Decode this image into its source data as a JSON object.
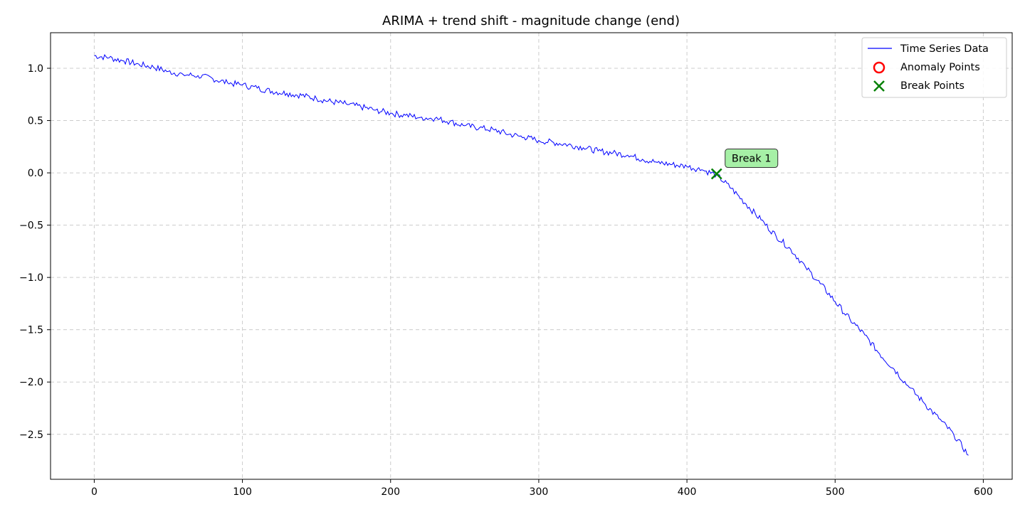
{
  "chart_data": {
    "type": "line",
    "title": "ARIMA + trend shift - magnitude change (end)",
    "xlabel": "",
    "ylabel": "",
    "xlim": [
      -29.5,
      619.5
    ],
    "ylim": [
      -2.93,
      1.34
    ],
    "xticks": [
      0,
      100,
      200,
      300,
      400,
      500,
      600
    ],
    "yticks": [
      -2.5,
      -2.0,
      -1.5,
      -1.0,
      -0.5,
      0.0,
      0.5,
      1.0
    ],
    "ytick_labels": [
      "−2.5",
      "−2.0",
      "−1.5",
      "−1.0",
      "−0.5",
      "0.0",
      "0.5",
      "1.0"
    ],
    "grid": true,
    "legend_position": "top-right",
    "legend": [
      "Time Series Data",
      "Anomaly Points",
      "Break Points"
    ],
    "colors": {
      "series": "#0000ff",
      "anomaly": "#ff0000",
      "break": "#008000",
      "annotation_fill": "#a6f0a6",
      "grid": "#cccccc"
    },
    "series": [
      {
        "name": "Time Series Data",
        "x": [
          0,
          10,
          20,
          30,
          40,
          50,
          60,
          70,
          80,
          90,
          100,
          110,
          120,
          130,
          140,
          150,
          160,
          170,
          180,
          190,
          200,
          210,
          220,
          230,
          240,
          250,
          260,
          270,
          280,
          290,
          300,
          310,
          320,
          330,
          340,
          350,
          360,
          370,
          380,
          390,
          400,
          410,
          420,
          430,
          440,
          450,
          460,
          470,
          480,
          490,
          500,
          510,
          520,
          530,
          540,
          550,
          560,
          570,
          580,
          590
        ],
        "y": [
          1.12,
          1.1,
          1.07,
          1.04,
          1.01,
          0.97,
          0.94,
          0.93,
          0.9,
          0.86,
          0.84,
          0.81,
          0.78,
          0.76,
          0.74,
          0.71,
          0.68,
          0.66,
          0.63,
          0.6,
          0.57,
          0.55,
          0.53,
          0.52,
          0.49,
          0.45,
          0.43,
          0.41,
          0.37,
          0.34,
          0.31,
          0.29,
          0.27,
          0.24,
          0.21,
          0.19,
          0.17,
          0.13,
          0.1,
          0.08,
          0.06,
          0.03,
          -0.02,
          -0.15,
          -0.3,
          -0.45,
          -0.6,
          -0.73,
          -0.9,
          -1.06,
          -1.23,
          -1.4,
          -1.55,
          -1.73,
          -1.88,
          -2.05,
          -2.2,
          -2.35,
          -2.5,
          -2.7
        ]
      }
    ],
    "anomaly_points": [],
    "break_points": [
      {
        "x": 420,
        "y": -0.01,
        "label": "Break 1"
      }
    ]
  }
}
